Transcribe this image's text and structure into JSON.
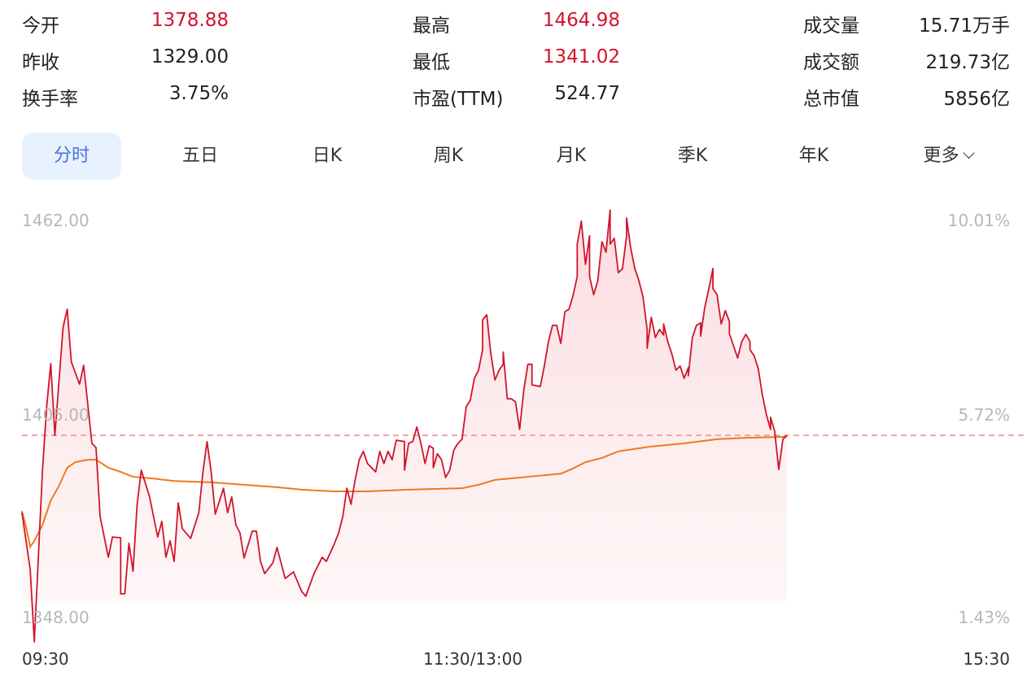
{
  "stats": [
    {
      "label": "今开",
      "value": "1378.88",
      "color": "#d0152b"
    },
    {
      "label": "最高",
      "value": "1464.98",
      "color": "#d0152b"
    },
    {
      "label": "成交量",
      "value": "15.71万手",
      "color": "#222222"
    },
    {
      "label": "昨收",
      "value": "1329.00",
      "color": "#222222"
    },
    {
      "label": "最低",
      "value": "1341.02",
      "color": "#d0152b"
    },
    {
      "label": "成交额",
      "value": "219.73亿",
      "color": "#222222"
    },
    {
      "label": "换手率",
      "value": "3.75%",
      "color": "#222222"
    },
    {
      "label": "市盈(TTM)",
      "value": "524.77",
      "color": "#222222"
    },
    {
      "label": "总市值",
      "value": "5856亿",
      "color": "#222222"
    }
  ],
  "tabs": [
    {
      "label": "分时",
      "active": true
    },
    {
      "label": "五日"
    },
    {
      "label": "日K"
    },
    {
      "label": "周K"
    },
    {
      "label": "月K"
    },
    {
      "label": "季K"
    },
    {
      "label": "年K"
    },
    {
      "label": "更多"
    }
  ],
  "more_icon": "chevron-down-icon",
  "chart_data": {
    "type": "line",
    "ylim": [
      1348.0,
      1462.0
    ],
    "y_ticks_left": [
      "1462.00",
      "1405.00",
      "1348.00"
    ],
    "y_ticks_right": [
      "10.01%",
      "5.72%",
      "1.43%"
    ],
    "x_ticks": [
      "09:30",
      "11:30/13:00",
      "15:30"
    ],
    "reference_price": 1400.3,
    "colors": {
      "price": "#d0152b",
      "average": "#ee7a1c",
      "reference": "#f2a3a3",
      "fill": "#fbe3e5"
    },
    "series": [
      {
        "key": "price",
        "points": [
          [
            "09:30",
            1378.1
          ],
          [
            "09:32",
            1361.8
          ],
          [
            "09:33",
            1341.0
          ],
          [
            "09:35",
            1390.5
          ],
          [
            "09:36",
            1408.5
          ],
          [
            "09:37",
            1420.9
          ],
          [
            "09:38",
            1400.3
          ],
          [
            "09:40",
            1431.4
          ],
          [
            "09:41",
            1436.5
          ],
          [
            "09:42",
            1421.4
          ],
          [
            "09:44",
            1415.0
          ],
          [
            "09:45",
            1420.4
          ],
          [
            "09:47",
            1398.0
          ],
          [
            "09:48",
            1396.8
          ],
          [
            "09:49",
            1377.0
          ],
          [
            "09:51",
            1365.3
          ],
          [
            "09:52",
            1371.1
          ],
          [
            "09:54",
            1370.9
          ],
          [
            "09:54",
            1354.8
          ],
          [
            "09:55",
            1354.8
          ],
          [
            "09:56",
            1369.3
          ],
          [
            "09:57",
            1361.3
          ],
          [
            "09:58",
            1380.5
          ],
          [
            "09:59",
            1390.3
          ],
          [
            "10:01",
            1382.8
          ],
          [
            "10:03",
            1371.1
          ],
          [
            "10:04",
            1375.6
          ],
          [
            "10:05",
            1365.3
          ],
          [
            "10:06",
            1370.0
          ],
          [
            "10:07",
            1364.1
          ],
          [
            "10:08",
            1380.9
          ],
          [
            "10:09",
            1373.5
          ],
          [
            "10:11",
            1370.7
          ],
          [
            "10:13",
            1378.1
          ],
          [
            "10:14",
            1389.8
          ],
          [
            "10:15",
            1398.5
          ],
          [
            "10:16",
            1389.8
          ],
          [
            "10:17",
            1377.7
          ],
          [
            "10:19",
            1385.1
          ],
          [
            "10:20",
            1378.1
          ],
          [
            "10:21",
            1382.6
          ],
          [
            "10:22",
            1374.6
          ],
          [
            "10:23",
            1372.3
          ],
          [
            "10:24",
            1365.1
          ],
          [
            "10:26",
            1372.8
          ],
          [
            "10:27",
            1372.8
          ],
          [
            "10:28",
            1364.1
          ],
          [
            "10:29",
            1360.6
          ],
          [
            "10:31",
            1363.7
          ],
          [
            "10:32",
            1368.1
          ],
          [
            "10:34",
            1359.2
          ],
          [
            "10:36",
            1361.1
          ],
          [
            "10:38",
            1355.5
          ],
          [
            "10:39",
            1354.1
          ],
          [
            "10:41",
            1360.6
          ],
          [
            "10:43",
            1365.3
          ],
          [
            "10:44",
            1364.1
          ],
          [
            "10:46",
            1369.3
          ],
          [
            "10:47",
            1372.3
          ],
          [
            "10:48",
            1377.0
          ],
          [
            "10:49",
            1385.1
          ],
          [
            "10:50",
            1380.5
          ],
          [
            "10:51",
            1387.5
          ],
          [
            "10:52",
            1393.3
          ],
          [
            "10:53",
            1395.7
          ],
          [
            "10:54",
            1392.2
          ],
          [
            "10:56",
            1389.8
          ],
          [
            "10:57",
            1395.7
          ],
          [
            "10:58",
            1392.2
          ],
          [
            "10:59",
            1395.7
          ],
          [
            "11:00",
            1393.3
          ],
          [
            "11:01",
            1398.9
          ],
          [
            "11:03",
            1398.5
          ],
          [
            "11:03",
            1390.3
          ],
          [
            "11:04",
            1398.0
          ],
          [
            "11:05",
            1398.5
          ],
          [
            "11:06",
            1402.7
          ],
          [
            "11:07",
            1398.0
          ],
          [
            "11:08",
            1392.2
          ],
          [
            "11:09",
            1397.3
          ],
          [
            "11:10",
            1396.6
          ],
          [
            "11:10",
            1391.0
          ],
          [
            "11:11",
            1395.0
          ],
          [
            "11:12",
            1393.3
          ],
          [
            "11:13",
            1388.2
          ],
          [
            "11:14",
            1390.3
          ],
          [
            "11:15",
            1396.1
          ],
          [
            "11:16",
            1398.0
          ],
          [
            "11:17",
            1399.2
          ],
          [
            "11:18",
            1408.5
          ],
          [
            "11:19",
            1410.4
          ],
          [
            "11:20",
            1416.7
          ],
          [
            "11:21",
            1419.0
          ],
          [
            "11:22",
            1424.9
          ],
          [
            "11:22",
            1433.5
          ],
          [
            "11:23",
            1434.9
          ],
          [
            "11:24",
            1423.7
          ],
          [
            "11:25",
            1416.2
          ],
          [
            "11:26",
            1419.0
          ],
          [
            "11:27",
            1420.7
          ],
          [
            "11:27",
            1424.2
          ],
          [
            "11:28",
            1410.8
          ],
          [
            "11:29",
            1410.8
          ],
          [
            "13:00",
            1409.9
          ],
          [
            "13:01",
            1402.0
          ],
          [
            "13:02",
            1413.2
          ],
          [
            "13:03",
            1420.7
          ],
          [
            "13:04",
            1420.7
          ],
          [
            "13:04",
            1414.8
          ],
          [
            "13:06",
            1414.3
          ],
          [
            "13:07",
            1420.2
          ],
          [
            "13:08",
            1427.2
          ],
          [
            "13:09",
            1431.9
          ],
          [
            "13:10",
            1431.9
          ],
          [
            "13:11",
            1426.7
          ],
          [
            "13:12",
            1435.8
          ],
          [
            "13:13",
            1436.5
          ],
          [
            "13:14",
            1440.5
          ],
          [
            "13:15",
            1445.9
          ],
          [
            "13:15",
            1455.2
          ],
          [
            "13:16",
            1461.8
          ],
          [
            "13:17",
            1449.4
          ],
          [
            "13:18",
            1457.6
          ],
          [
            "13:18",
            1445.9
          ],
          [
            "13:19",
            1440.7
          ],
          [
            "13:20",
            1444.7
          ],
          [
            "13:21",
            1455.9
          ],
          [
            "13:22",
            1452.9
          ],
          [
            "13:23",
            1464.98
          ],
          [
            "13:23",
            1455.2
          ],
          [
            "13:24",
            1456.9
          ],
          [
            "13:25",
            1447.0
          ],
          [
            "13:26",
            1448.2
          ],
          [
            "13:27",
            1457.6
          ],
          [
            "13:27",
            1462.7
          ],
          [
            "13:28",
            1454.1
          ],
          [
            "13:29",
            1448.2
          ],
          [
            "13:30",
            1444.7
          ],
          [
            "13:31",
            1440.0
          ],
          [
            "13:32",
            1430.7
          ],
          [
            "13:32",
            1425.3
          ],
          [
            "13:33",
            1434.2
          ],
          [
            "13:34",
            1428.4
          ],
          [
            "13:35",
            1430.7
          ],
          [
            "13:36",
            1429.1
          ],
          [
            "13:36",
            1432.3
          ],
          [
            "13:37",
            1427.2
          ],
          [
            "13:38",
            1423.7
          ],
          [
            "13:39",
            1419.0
          ],
          [
            "13:40",
            1420.2
          ],
          [
            "13:41",
            1416.7
          ],
          [
            "13:42",
            1419.7
          ],
          [
            "13:42",
            1417.4
          ],
          [
            "13:43",
            1428.4
          ],
          [
            "13:44",
            1431.9
          ],
          [
            "13:45",
            1432.6
          ],
          [
            "13:45",
            1428.8
          ],
          [
            "13:46",
            1437.0
          ],
          [
            "13:47",
            1442.4
          ],
          [
            "13:48",
            1448.2
          ],
          [
            "13:48",
            1442.4
          ],
          [
            "13:49",
            1440.7
          ],
          [
            "13:50",
            1432.3
          ],
          [
            "13:51",
            1436.1
          ],
          [
            "13:52",
            1433.0
          ],
          [
            "13:52",
            1429.5
          ],
          [
            "13:53",
            1426.0
          ],
          [
            "13:54",
            1422.5
          ],
          [
            "13:55",
            1427.2
          ],
          [
            "13:56",
            1429.3
          ],
          [
            "13:57",
            1427.2
          ],
          [
            "13:57",
            1424.9
          ],
          [
            "13:58",
            1423.2
          ],
          [
            "13:59",
            1419.5
          ],
          [
            "14:00",
            1412.0
          ],
          [
            "14:01",
            1406.2
          ],
          [
            "14:02",
            1402.0
          ],
          [
            "14:02",
            1405.5
          ],
          [
            "14:03",
            1401.5
          ],
          [
            "14:04",
            1390.5
          ],
          [
            "14:05",
            1399.2
          ],
          [
            "14:06",
            1400.3
          ]
        ]
      },
      {
        "key": "average",
        "points": [
          [
            "09:30",
            1378.6
          ],
          [
            "09:31",
            1373.9
          ],
          [
            "09:32",
            1368.3
          ],
          [
            "09:33",
            1370.0
          ],
          [
            "09:35",
            1374.6
          ],
          [
            "09:37",
            1381.6
          ],
          [
            "09:39",
            1385.8
          ],
          [
            "09:41",
            1391.0
          ],
          [
            "09:43",
            1392.6
          ],
          [
            "09:46",
            1393.3
          ],
          [
            "09:48",
            1393.3
          ],
          [
            "09:51",
            1391.0
          ],
          [
            "09:54",
            1389.8
          ],
          [
            "09:57",
            1388.4
          ],
          [
            "10:02",
            1387.9
          ],
          [
            "10:07",
            1387.2
          ],
          [
            "10:16",
            1386.8
          ],
          [
            "10:24",
            1386.1
          ],
          [
            "10:32",
            1385.4
          ],
          [
            "10:38",
            1384.7
          ],
          [
            "10:46",
            1384.2
          ],
          [
            "10:54",
            1384.2
          ],
          [
            "11:04",
            1384.7
          ],
          [
            "11:17",
            1385.1
          ],
          [
            "11:21",
            1386.1
          ],
          [
            "11:25",
            1387.5
          ],
          [
            "13:03",
            1388.4
          ],
          [
            "13:11",
            1389.3
          ],
          [
            "13:14",
            1390.8
          ],
          [
            "13:17",
            1392.6
          ],
          [
            "13:21",
            1393.8
          ],
          [
            "13:25",
            1395.7
          ],
          [
            "13:33",
            1397.1
          ],
          [
            "13:41",
            1398.0
          ],
          [
            "13:49",
            1399.2
          ],
          [
            "13:56",
            1399.6
          ],
          [
            "14:06",
            1399.9
          ]
        ]
      }
    ]
  }
}
